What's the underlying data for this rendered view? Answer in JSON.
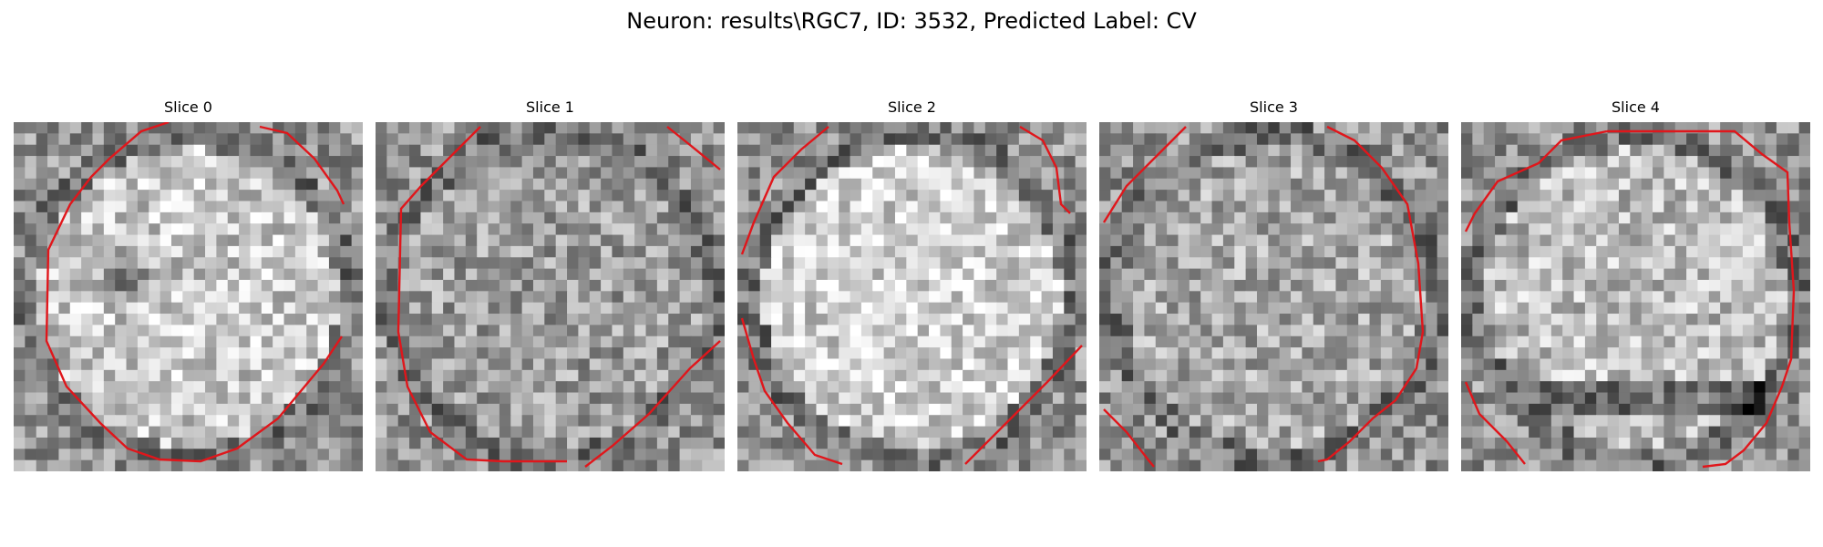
{
  "figure": {
    "title": "Neuron: results\\RGC7, ID: 3532, Predicted Label: CV"
  },
  "panels": [
    {
      "title": "Slice 0",
      "seed": 11,
      "center_brightness": 0.78,
      "dark_spot": true
    },
    {
      "title": "Slice 1",
      "seed": 27,
      "center_brightness": 0.62,
      "dark_spot": false
    },
    {
      "title": "Slice 2",
      "seed": 43,
      "center_brightness": 0.82,
      "dark_spot": false
    },
    {
      "title": "Slice 3",
      "seed": 59,
      "center_brightness": 0.66,
      "dark_spot": false
    },
    {
      "title": "Slice 4",
      "seed": 71,
      "center_brightness": 0.74,
      "dark_band": true
    }
  ],
  "style": {
    "contour_color": "#e0161b",
    "colormap": "gray"
  }
}
